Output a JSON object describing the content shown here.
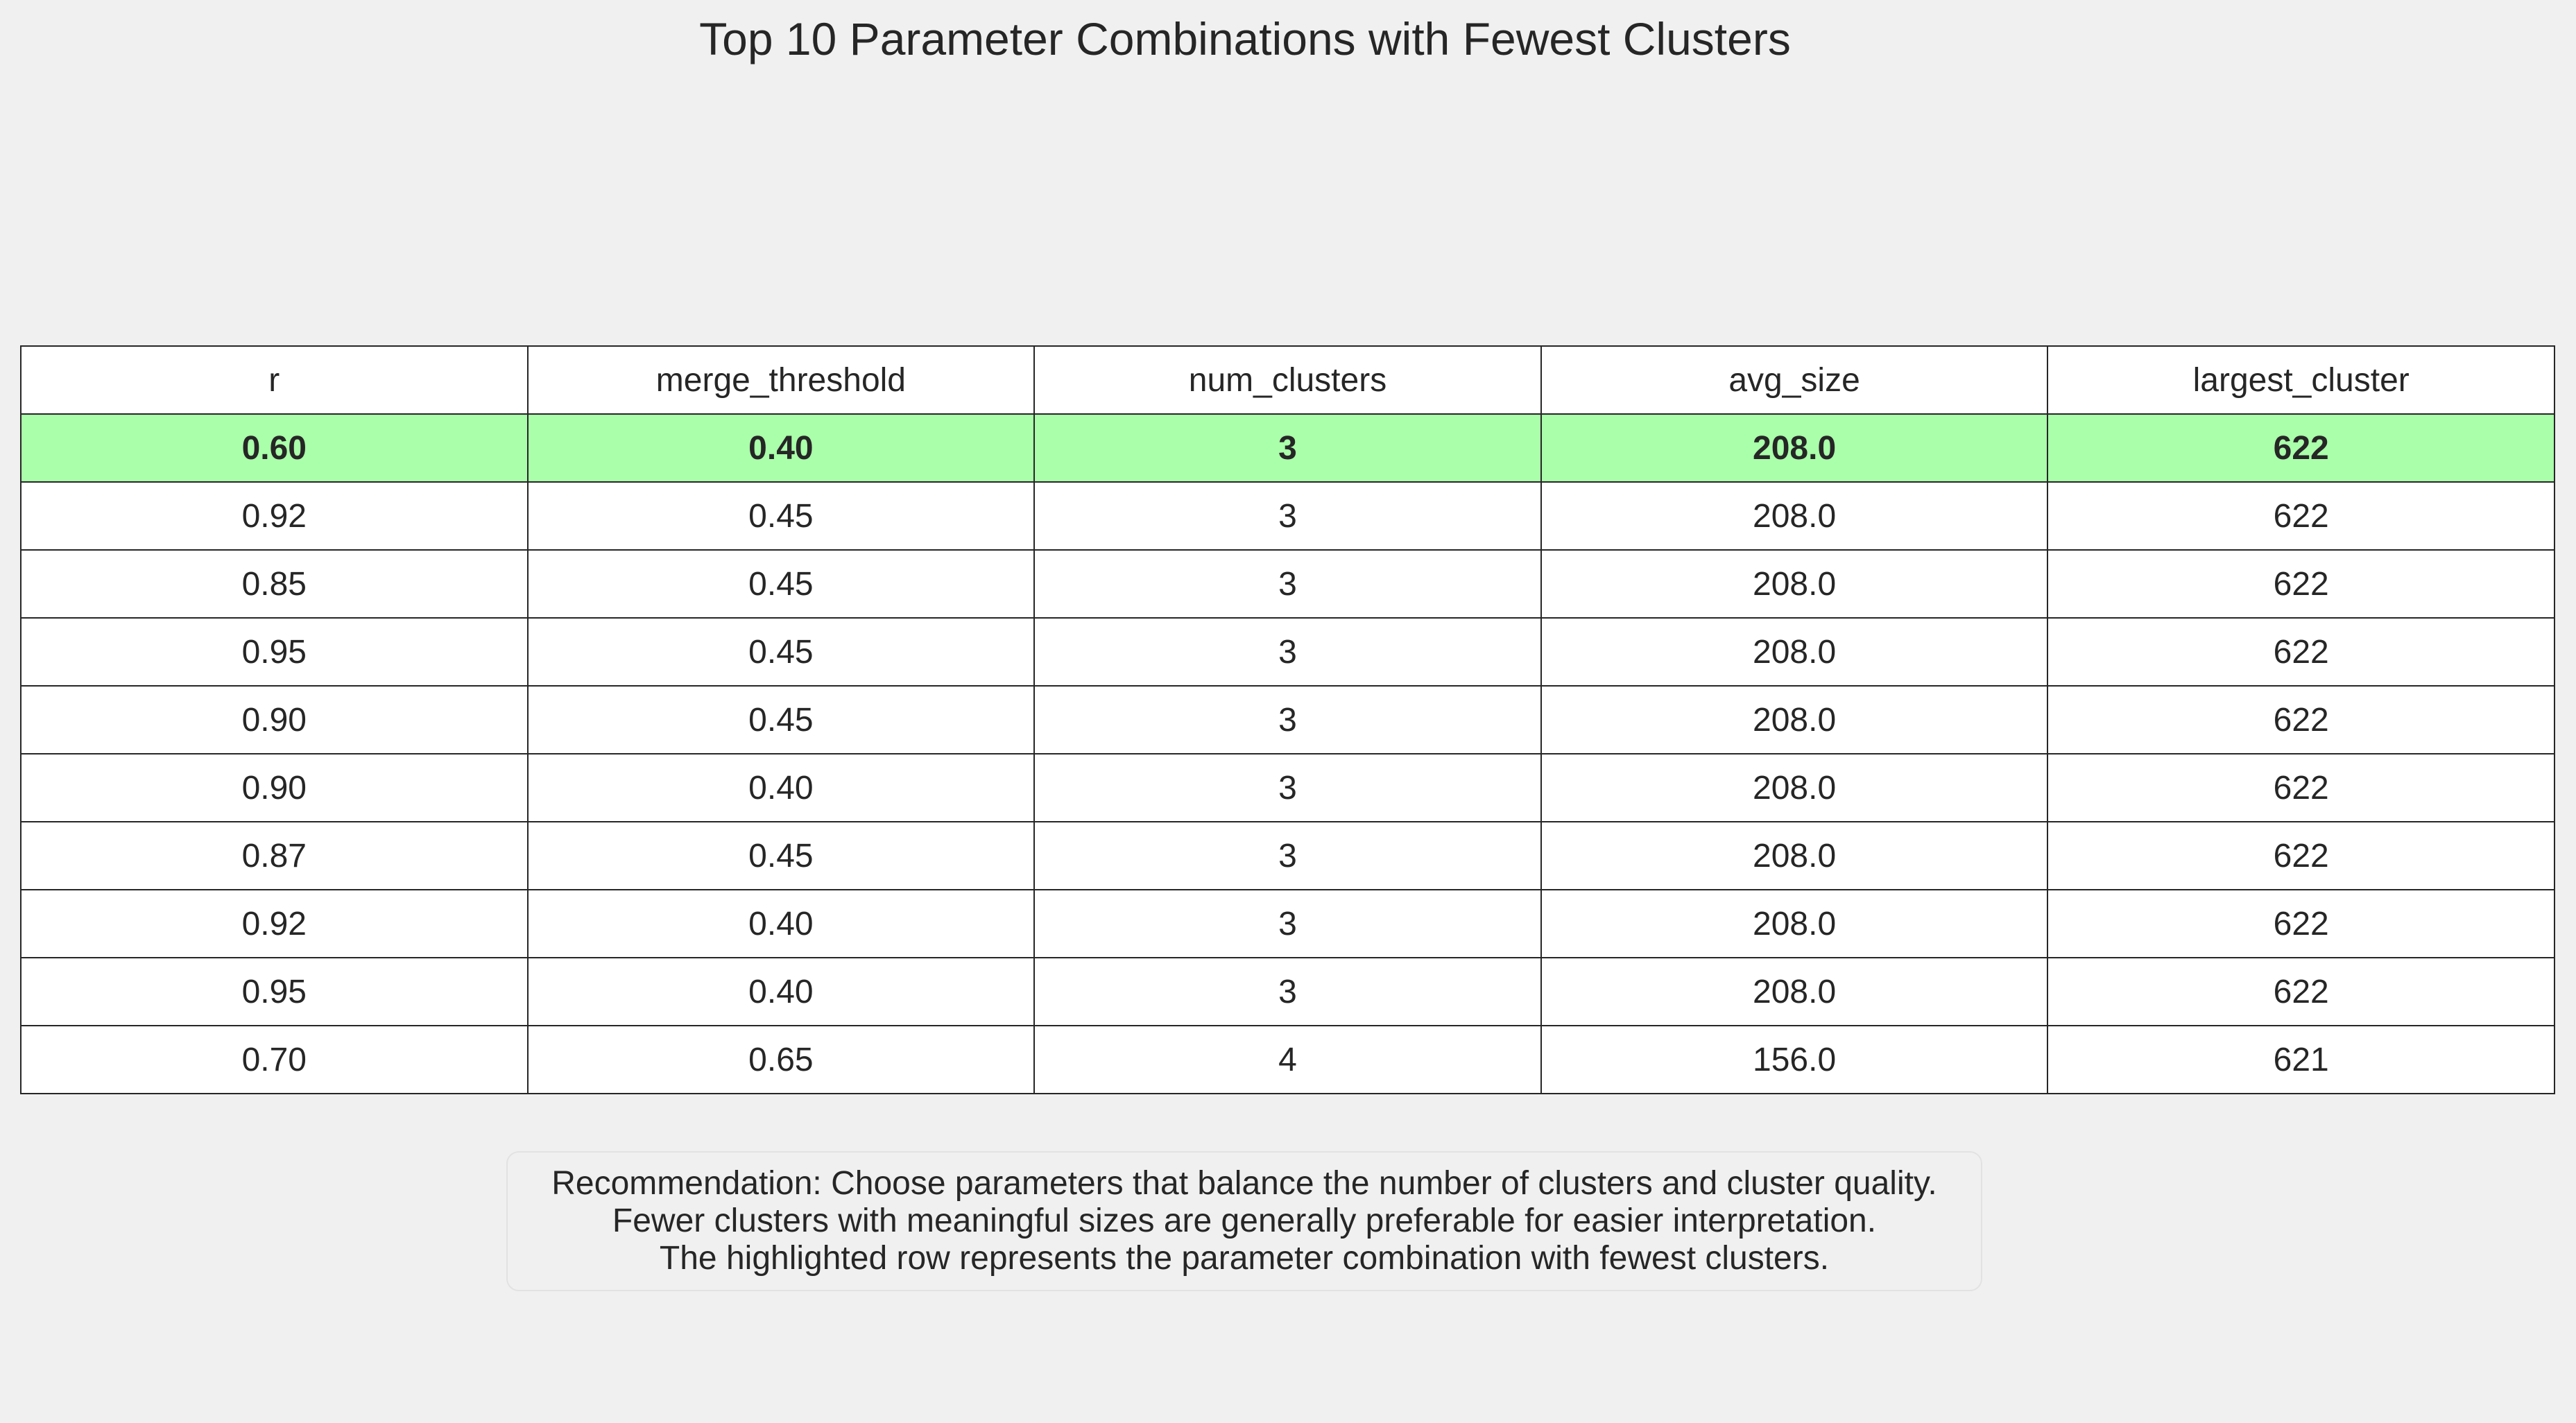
{
  "chart_data": {
    "type": "table",
    "title": "Top 10 Parameter Combinations with Fewest Clusters",
    "columns": [
      "r",
      "merge_threshold",
      "num_clusters",
      "avg_size",
      "largest_cluster"
    ],
    "rows": [
      [
        "0.60",
        "0.40",
        "3",
        "208.0",
        "622"
      ],
      [
        "0.92",
        "0.45",
        "3",
        "208.0",
        "622"
      ],
      [
        "0.85",
        "0.45",
        "3",
        "208.0",
        "622"
      ],
      [
        "0.95",
        "0.45",
        "3",
        "208.0",
        "622"
      ],
      [
        "0.90",
        "0.45",
        "3",
        "208.0",
        "622"
      ],
      [
        "0.90",
        "0.40",
        "3",
        "208.0",
        "622"
      ],
      [
        "0.87",
        "0.45",
        "3",
        "208.0",
        "622"
      ],
      [
        "0.92",
        "0.40",
        "3",
        "208.0",
        "622"
      ],
      [
        "0.95",
        "0.40",
        "3",
        "208.0",
        "622"
      ],
      [
        "0.70",
        "0.65",
        "4",
        "156.0",
        "621"
      ]
    ],
    "highlighted_row": 0,
    "highlight_color": "#aaffaa"
  },
  "note": {
    "lines": [
      "Recommendation: Choose parameters that balance the number of clusters and cluster quality.",
      "Fewer clusters with meaningful sizes are generally preferable for easier interpretation.",
      "The highlighted row represents the parameter combination with fewest clusters."
    ]
  }
}
